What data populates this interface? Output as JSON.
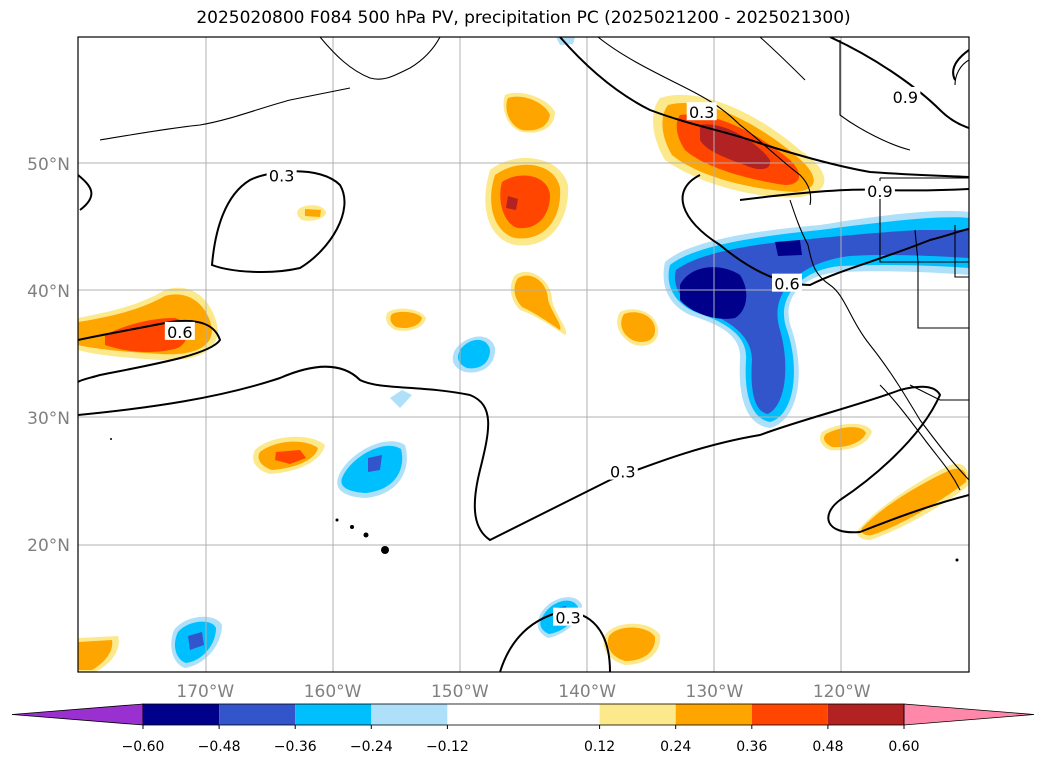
{
  "title": "2025020800 F084 500 hPa PV, precipitation PC (2025021200 - 2025021300)",
  "map": {
    "lon_labels": [
      {
        "lon": -170,
        "text": "170°W"
      },
      {
        "lon": -160,
        "text": "160°W"
      },
      {
        "lon": -150,
        "text": "150°W"
      },
      {
        "lon": -140,
        "text": "140°W"
      },
      {
        "lon": -130,
        "text": "130°W"
      },
      {
        "lon": -120,
        "text": "120°W"
      }
    ],
    "lat_labels": [
      {
        "lat": 50,
        "text": "50°N"
      },
      {
        "lat": 40,
        "text": "40°N"
      },
      {
        "lat": 30,
        "text": "30°N"
      },
      {
        "lat": 20,
        "text": "20°N"
      }
    ],
    "contour_labels": [
      {
        "text": "0.3",
        "lon": -164,
        "lat": 49
      },
      {
        "text": "0.3",
        "lon": -131,
        "lat": 54.0
      },
      {
        "text": "0.9",
        "lon": -117,
        "lat": 47.8
      },
      {
        "text": "0.9",
        "lon": -115,
        "lat": 55.2
      },
      {
        "text": "0.6",
        "lon": -124.3,
        "lat": 40.5
      },
      {
        "text": "0.6",
        "lon": -172,
        "lat": 36.7
      },
      {
        "text": "0.3",
        "lon": -137.2,
        "lat": 25.7
      },
      {
        "text": "0.3",
        "lon": -141.5,
        "lat": 14.2
      }
    ]
  },
  "colorbar": {
    "ticks": [
      "−0.60",
      "−0.48",
      "−0.36",
      "−0.24",
      "−0.12",
      "0.12",
      "0.24",
      "0.36",
      "0.48",
      "0.60"
    ],
    "levels": [
      -0.6,
      -0.48,
      -0.36,
      -0.24,
      -0.12,
      0.12,
      0.24,
      0.36,
      0.48,
      0.6
    ],
    "colors": [
      "#9b30d0",
      "#00008b",
      "#3355cc",
      "#00bfff",
      "#aee0fa",
      "#ffffff",
      "#fce98c",
      "#ffa500",
      "#ff4500",
      "#b22222",
      "#ff88aa"
    ]
  }
}
